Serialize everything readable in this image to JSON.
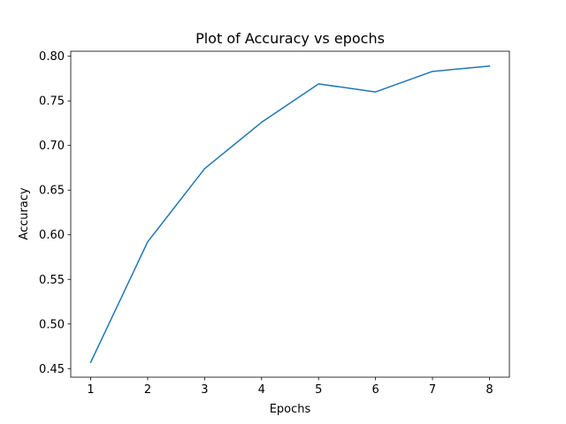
{
  "colors": {
    "series": "#1f77b4",
    "axes": "#000000",
    "background": "#ffffff"
  },
  "chart_data": {
    "type": "line",
    "title": "Plot of Accuracy vs epochs",
    "xlabel": "Epochs",
    "ylabel": "Accuracy",
    "grid": false,
    "x": [
      1,
      2,
      3,
      4,
      5,
      6,
      7,
      8
    ],
    "series": [
      {
        "values": [
          0.457,
          0.592,
          0.674,
          0.726,
          0.769,
          0.76,
          0.783,
          0.789
        ]
      }
    ],
    "xlim": [
      0.65,
      8.35
    ],
    "ylim": [
      0.4404,
      0.8056
    ],
    "x_ticks": [
      1,
      2,
      3,
      4,
      5,
      6,
      7,
      8
    ],
    "x_tick_labels": [
      "1",
      "2",
      "3",
      "4",
      "5",
      "6",
      "7",
      "8"
    ],
    "y_ticks": [
      0.45,
      0.5,
      0.55,
      0.6,
      0.65,
      0.7,
      0.75,
      0.8
    ],
    "y_tick_labels": [
      "0.45",
      "0.50",
      "0.55",
      "0.60",
      "0.65",
      "0.70",
      "0.75",
      "0.80"
    ]
  }
}
